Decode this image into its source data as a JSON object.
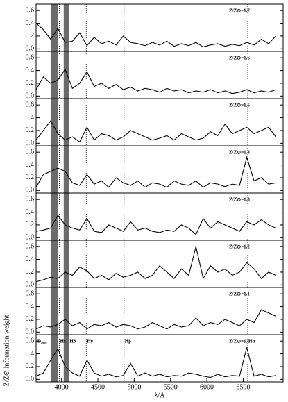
{
  "chart_data": [
    {
      "type": "line",
      "title": "Z/Z⊙=1.7",
      "x": [
        3650,
        3750,
        3850,
        3950,
        4050,
        4150,
        4250,
        4350,
        4450,
        4550,
        4650,
        4750,
        4850,
        4950,
        5050,
        5150,
        5250,
        5350,
        5450,
        5550,
        5650,
        5750,
        5850,
        5950,
        6050,
        6150,
        6250,
        6350,
        6450,
        6550,
        6650,
        6750,
        6850,
        6950
      ],
      "values": [
        0.4,
        0.3,
        0.15,
        0.32,
        0.1,
        0.12,
        0.25,
        0.05,
        0.18,
        0.08,
        0.12,
        0.06,
        0.2,
        0.1,
        0.08,
        0.05,
        0.1,
        0.06,
        0.12,
        0.04,
        0.08,
        0.05,
        0.1,
        0.03,
        0.06,
        0.08,
        0.04,
        0.07,
        0.05,
        0.1,
        0.06,
        0.15,
        0.08,
        0.2
      ],
      "color": "#000000",
      "xlim": [
        3650,
        7050
      ],
      "ylim": [
        -0.04,
        0.7
      ],
      "yticks": [
        {
          "value": 0,
          "label": "0.0"
        },
        0.2,
        0.4,
        0.6
      ],
      "bands": [
        [
          3850,
          3950
        ],
        [
          4030,
          4100
        ]
      ],
      "vlines": [
        3970,
        4340,
        4861,
        6563
      ]
    },
    {
      "type": "line",
      "title": "Z/Z⊙=1.6",
      "x": [
        3650,
        3750,
        3850,
        3950,
        4050,
        4150,
        4250,
        4350,
        4450,
        4550,
        4650,
        4750,
        4850,
        4950,
        5050,
        5150,
        5250,
        5350,
        5450,
        5550,
        5650,
        5750,
        5850,
        5950,
        6050,
        6150,
        6250,
        6350,
        6450,
        6550,
        6650,
        6750,
        6850,
        6950
      ],
      "values": [
        0.1,
        0.3,
        0.2,
        0.25,
        0.42,
        0.12,
        0.2,
        0.38,
        0.15,
        0.2,
        0.12,
        0.18,
        0.1,
        0.14,
        0.08,
        0.12,
        0.1,
        0.06,
        0.12,
        0.08,
        0.1,
        0.05,
        0.08,
        0.06,
        0.1,
        0.05,
        0.08,
        0.04,
        0.06,
        0.1,
        0.05,
        0.08,
        0.06,
        0.1
      ],
      "color": "#000000",
      "xlim": [
        3650,
        7050
      ],
      "ylim": [
        -0.04,
        0.7
      ],
      "yticks": [
        {
          "value": 0,
          "label": "0.0"
        },
        0.2,
        0.4,
        0.6
      ],
      "bands": [
        [
          3850,
          3950
        ],
        [
          4030,
          4100
        ]
      ],
      "vlines": [
        3970,
        4340,
        4861,
        6563
      ]
    },
    {
      "type": "line",
      "title": "Z/Z⊙=1.5",
      "x": [
        3650,
        3750,
        3850,
        3950,
        4050,
        4150,
        4250,
        4350,
        4450,
        4550,
        4650,
        4750,
        4850,
        4950,
        5050,
        5150,
        5250,
        5350,
        5450,
        5550,
        5650,
        5750,
        5850,
        5950,
        6050,
        6150,
        6250,
        6350,
        6450,
        6550,
        6650,
        6750,
        6850,
        6950
      ],
      "values": [
        0.05,
        0.2,
        0.35,
        0.15,
        0.05,
        0.1,
        0.02,
        0.25,
        0.05,
        0.15,
        0.12,
        0.05,
        0.1,
        0.2,
        0.15,
        0.1,
        0.05,
        0.08,
        0.12,
        0.05,
        0.15,
        0.1,
        0.05,
        0.08,
        0.18,
        0.12,
        0.3,
        0.15,
        0.2,
        0.25,
        0.15,
        0.2,
        0.25,
        0.1
      ],
      "color": "#000000",
      "xlim": [
        3650,
        7050
      ],
      "ylim": [
        -0.04,
        0.7
      ],
      "yticks": [
        {
          "value": 0,
          "label": "0.0"
        },
        0.2,
        0.4,
        0.6
      ],
      "bands": [
        [
          3850,
          3950
        ],
        [
          4030,
          4100
        ]
      ],
      "vlines": [
        3970,
        4340,
        4861,
        6563
      ]
    },
    {
      "type": "line",
      "title": "Z/Z⊙=1.4",
      "x": [
        3650,
        3750,
        3850,
        3950,
        4050,
        4150,
        4250,
        4350,
        4450,
        4550,
        4650,
        4750,
        4850,
        4950,
        5050,
        5150,
        5250,
        5350,
        5450,
        5550,
        5650,
        5750,
        5850,
        5950,
        6050,
        6150,
        6250,
        6350,
        6450,
        6550,
        6650,
        6750,
        6850,
        6950
      ],
      "values": [
        0.05,
        0.25,
        0.3,
        0.35,
        0.3,
        0.12,
        0.08,
        0.25,
        0.1,
        0.15,
        0.05,
        0.2,
        0.12,
        0.08,
        0.15,
        0.05,
        0.12,
        0.1,
        0.05,
        0.15,
        0.1,
        0.08,
        0.15,
        0.05,
        0.12,
        0.1,
        0.06,
        0.1,
        0.08,
        0.52,
        0.15,
        0.2,
        0.1,
        0.12
      ],
      "color": "#000000",
      "xlim": [
        3650,
        7050
      ],
      "ylim": [
        -0.04,
        0.7
      ],
      "yticks": [
        {
          "value": 0,
          "label": "0.0"
        },
        0.2,
        0.4,
        0.6
      ],
      "bands": [
        [
          3850,
          3950
        ],
        [
          4030,
          4100
        ]
      ],
      "vlines": [
        3970,
        4340,
        4861,
        6563
      ]
    },
    {
      "type": "line",
      "title": "Z/Z⊙=1.3",
      "x": [
        3650,
        3750,
        3850,
        3950,
        4050,
        4150,
        4250,
        4350,
        4450,
        4550,
        4650,
        4750,
        4850,
        4950,
        5050,
        5150,
        5250,
        5350,
        5450,
        5550,
        5650,
        5750,
        5850,
        5950,
        6050,
        6150,
        6250,
        6350,
        6450,
        6550,
        6650,
        6750,
        6850,
        6950
      ],
      "values": [
        0.1,
        0.12,
        0.15,
        0.35,
        0.2,
        0.15,
        0.12,
        0.3,
        0.1,
        0.08,
        0.2,
        0.15,
        0.1,
        0.25,
        0.12,
        0.15,
        0.1,
        0.08,
        0.12,
        0.1,
        0.2,
        0.15,
        0.05,
        0.3,
        0.15,
        0.25,
        0.2,
        0.15,
        0.1,
        0.25,
        0.2,
        0.28,
        0.2,
        0.15
      ],
      "color": "#000000",
      "xlim": [
        3650,
        7050
      ],
      "ylim": [
        -0.04,
        0.7
      ],
      "yticks": [
        {
          "value": 0,
          "label": "0.0"
        },
        0.2,
        0.4,
        0.6
      ],
      "bands": [
        [
          3850,
          3950
        ],
        [
          4030,
          4100
        ]
      ],
      "vlines": [
        3970,
        4340,
        4861,
        6563
      ]
    },
    {
      "type": "line",
      "title": "Z/Z⊙=1.2",
      "x": [
        3650,
        3750,
        3850,
        3950,
        4050,
        4150,
        4250,
        4350,
        4450,
        4550,
        4650,
        4750,
        4850,
        4950,
        5050,
        5150,
        5250,
        5350,
        5450,
        5550,
        5650,
        5750,
        5850,
        5950,
        6050,
        6150,
        6250,
        6350,
        6450,
        6550,
        6650,
        6750,
        6850,
        6950
      ],
      "values": [
        0.05,
        0.08,
        0.12,
        0.1,
        0.2,
        0.15,
        0.28,
        0.22,
        0.1,
        0.15,
        0.08,
        0.18,
        0.12,
        0.15,
        0.2,
        0.1,
        0.15,
        0.3,
        0.2,
        0.1,
        0.25,
        0.15,
        0.6,
        0.1,
        0.3,
        0.2,
        0.25,
        0.15,
        0.2,
        0.35,
        0.25,
        0.1,
        0.2,
        0.15
      ],
      "color": "#000000",
      "xlim": [
        3650,
        7050
      ],
      "ylim": [
        -0.04,
        0.7
      ],
      "yticks": [
        {
          "value": 0,
          "label": "0.0"
        },
        0.2,
        0.4,
        0.6
      ],
      "bands": [
        [
          3850,
          3950
        ],
        [
          4030,
          4100
        ]
      ],
      "vlines": [
        3970,
        4340,
        4861,
        6563
      ]
    },
    {
      "type": "line",
      "title": "Z/Z⊙=1.1",
      "x": [
        3650,
        3750,
        3850,
        3950,
        4050,
        4150,
        4250,
        4350,
        4450,
        4550,
        4650,
        4750,
        4850,
        4950,
        5050,
        5150,
        5250,
        5350,
        5450,
        5550,
        5650,
        5750,
        5850,
        5950,
        6050,
        6150,
        6250,
        6350,
        6450,
        6550,
        6650,
        6750,
        6850,
        6950
      ],
      "values": [
        0.05,
        0.1,
        0.08,
        0.12,
        0.2,
        0.1,
        0.15,
        0.05,
        0.12,
        0.1,
        0.15,
        0.08,
        0.12,
        0.1,
        0.05,
        0.08,
        0.15,
        0.1,
        0.05,
        0.12,
        0.08,
        0.1,
        0.22,
        0.1,
        0.15,
        0.12,
        0.2,
        0.15,
        0.1,
        0.2,
        0.15,
        0.35,
        0.3,
        0.25
      ],
      "color": "#000000",
      "xlim": [
        3650,
        7050
      ],
      "ylim": [
        -0.04,
        0.7
      ],
      "yticks": [
        {
          "value": 0,
          "label": "0.0"
        },
        0.2,
        0.4,
        0.6
      ],
      "bands": [
        [
          3850,
          3950
        ],
        [
          4030,
          4100
        ]
      ],
      "vlines": [
        3970,
        4340,
        4861,
        6563
      ]
    },
    {
      "type": "line",
      "title": "Z/Z⊙=1.0",
      "x": [
        3650,
        3750,
        3850,
        3950,
        4050,
        4150,
        4250,
        4350,
        4450,
        4550,
        4650,
        4750,
        4850,
        4950,
        5050,
        5150,
        5250,
        5350,
        5450,
        5550,
        5650,
        5750,
        5850,
        5950,
        6050,
        6150,
        6250,
        6350,
        6450,
        6550,
        6650,
        6750,
        6850,
        6950
      ],
      "values": [
        0.05,
        0.1,
        0.3,
        0.48,
        0.2,
        0.1,
        0.05,
        0.3,
        0.1,
        0.05,
        0.08,
        0.04,
        0.06,
        0.25,
        0.05,
        0.1,
        0.05,
        0.08,
        0.04,
        0.06,
        0.05,
        0.1,
        0.08,
        0.05,
        0.03,
        0.08,
        0.04,
        0.06,
        0.05,
        0.5,
        0.05,
        0.08,
        0.04,
        0.06
      ],
      "color": "#000000",
      "xlim": [
        3650,
        7050
      ],
      "ylim": [
        -0.04,
        0.7
      ],
      "yticks": [
        {
          "value": 0,
          "label": "0.0"
        },
        0.2,
        0.4,
        0.6
      ],
      "bands": [
        [
          3850,
          3950
        ],
        [
          4030,
          4100
        ]
      ],
      "vlines": [
        3970,
        4340,
        4861,
        6563
      ],
      "xticks": [
        4000,
        4500,
        5000,
        5500,
        6000,
        6500
      ],
      "line_labels": [
        {
          "value": 3970,
          "label": "Hε"
        },
        {
          "value": 4102,
          "label": "Hδ"
        },
        {
          "value": 4340,
          "label": "Hγ"
        },
        {
          "value": 4861,
          "label": "Hβ"
        },
        {
          "value": 6563,
          "label": "Hα"
        }
      ],
      "band_label": "D₄₀₀₀",
      "xlabel": "λ/Å",
      "ylabel": "Z/Z⊙ information weight"
    }
  ]
}
